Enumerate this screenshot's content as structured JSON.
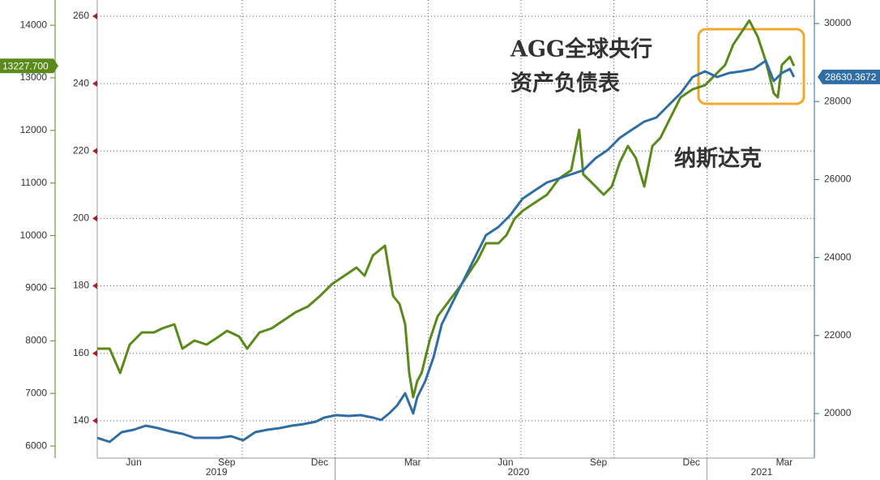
{
  "chart_data": {
    "type": "line",
    "annotations": [
      "AGG全球央行",
      "资产负债表",
      "纳斯达克"
    ],
    "xlim": [
      4.32,
      27.47
    ],
    "xticks": [
      {
        "value": 5.5,
        "label": "Jun"
      },
      {
        "value": 8.5,
        "label": "Sep"
      },
      {
        "value": 11.5,
        "label": "Dec"
      },
      {
        "value": 14.5,
        "label": "Mar"
      },
      {
        "value": 17.5,
        "label": "Jun"
      },
      {
        "value": 20.5,
        "label": "Sep"
      },
      {
        "value": 23.5,
        "label": "Dec"
      },
      {
        "value": 26.5,
        "label": "Mar"
      }
    ],
    "year_ticks": [
      {
        "value": 8.17,
        "label": "2019"
      },
      {
        "value": 17.92,
        "label": "2020"
      },
      {
        "value": 25.77,
        "label": "2021"
      }
    ],
    "xgrid": [
      9,
      12,
      15,
      18,
      21,
      24
    ],
    "year_breaks": [
      12,
      24
    ],
    "ylim": [
      5770,
      14480
    ],
    "yticks": [
      6000,
      7000,
      8000,
      9000,
      10000,
      11000,
      12000,
      13000,
      14000
    ],
    "y2lim": [
      18857,
      30603
    ],
    "y2ticks": [
      20000,
      22000,
      24000,
      26000,
      28000,
      30000
    ],
    "y3lim": [
      128.9,
      264.8
    ],
    "y3ticks": [
      140,
      160,
      180,
      200,
      220,
      240,
      260
    ],
    "grid": true,
    "series": [
      {
        "name": "纳斯达克",
        "color": "#5a8a1a",
        "axis": "y",
        "x": [
          4.32,
          4.72,
          5.06,
          5.37,
          5.76,
          6.15,
          6.42,
          6.81,
          7.07,
          7.46,
          7.85,
          8.25,
          8.51,
          8.9,
          9.16,
          9.56,
          9.95,
          10.34,
          10.73,
          11.12,
          11.51,
          11.91,
          12.3,
          12.69,
          12.95,
          13.22,
          13.61,
          13.87,
          14.08,
          14.26,
          14.39,
          14.52,
          14.65,
          14.79,
          15.05,
          15.31,
          15.7,
          16.09,
          16.35,
          16.61,
          16.87,
          17.27,
          17.53,
          17.79,
          18.05,
          18.44,
          18.84,
          19.23,
          19.62,
          19.88,
          20.01,
          20.28,
          20.67,
          20.93,
          21.19,
          21.45,
          21.71,
          21.98,
          22.24,
          22.5,
          22.76,
          23.15,
          23.54,
          23.94,
          24.2,
          24.59,
          24.85,
          25.11,
          25.37,
          25.64,
          25.9,
          26.16,
          26.29,
          26.42,
          26.68,
          26.81
        ],
        "values": [
          7851,
          7851,
          7389,
          7928,
          8160,
          8160,
          8237,
          8314,
          7851,
          8006,
          7928,
          8083,
          8190,
          8083,
          7851,
          8160,
          8237,
          8391,
          8545,
          8653,
          8853,
          9084,
          9238,
          9392,
          9238,
          9623,
          9808,
          8853,
          8699,
          8314,
          7389,
          6927,
          7235,
          7389,
          8006,
          8468,
          8776,
          9084,
          9315,
          9546,
          9855,
          9855,
          10009,
          10317,
          10471,
          10625,
          10779,
          11087,
          11242,
          12012,
          11165,
          11010,
          10779,
          10933,
          11396,
          11704,
          11473,
          10933,
          11704,
          11858,
          12166,
          12629,
          12783,
          12860,
          13014,
          13245,
          13630,
          13861,
          14092,
          13784,
          13322,
          12706,
          12629,
          13245,
          13399,
          13227.7
        ],
        "value_labels": [
          null,
          null,
          null,
          null,
          null,
          null,
          null,
          null,
          null,
          null,
          null,
          null,
          null,
          null,
          null,
          null,
          null,
          null,
          null,
          null,
          null,
          null,
          null,
          null,
          null,
          null,
          null,
          null,
          null,
          null,
          null,
          null,
          null,
          null,
          null,
          null,
          null,
          null,
          null,
          null,
          null,
          null,
          null,
          null,
          null,
          null,
          null,
          null,
          null,
          null,
          null,
          null,
          null,
          null,
          null,
          null,
          null,
          null,
          null,
          null,
          null,
          null,
          null,
          null,
          null,
          null,
          null,
          null,
          null,
          null,
          null,
          null,
          null,
          null,
          null,
          "13227.700"
        ]
      },
      {
        "name": "AGG全球央行资产负债表",
        "color": "#2f6ea5",
        "axis": "y2",
        "x": [
          4.32,
          4.72,
          5.11,
          5.5,
          5.89,
          6.28,
          6.68,
          7.07,
          7.46,
          7.85,
          8.25,
          8.64,
          9.03,
          9.42,
          9.81,
          10.21,
          10.6,
          10.99,
          11.38,
          11.65,
          12.04,
          12.43,
          12.82,
          13.22,
          13.48,
          13.74,
          14.0,
          14.26,
          14.52,
          14.65,
          14.91,
          15.18,
          15.44,
          15.83,
          16.22,
          16.61,
          16.87,
          17.27,
          17.66,
          18.05,
          18.44,
          18.84,
          19.23,
          19.62,
          20.01,
          20.41,
          20.8,
          21.19,
          21.58,
          21.98,
          22.37,
          22.76,
          23.15,
          23.54,
          23.94,
          24.33,
          24.72,
          25.11,
          25.51,
          25.9,
          26.16,
          26.42,
          26.68,
          26.81
        ],
        "values": [
          19376,
          19272,
          19522,
          19584,
          19688,
          19626,
          19542,
          19480,
          19376,
          19376,
          19376,
          19418,
          19314,
          19522,
          19584,
          19626,
          19688,
          19730,
          19792,
          19896,
          19958,
          19938,
          19958,
          19896,
          19834,
          20000,
          20208,
          20520,
          20000,
          20416,
          20832,
          21455,
          22287,
          22911,
          23534,
          24158,
          24574,
          24782,
          25094,
          25509,
          25717,
          25925,
          26029,
          26133,
          26237,
          26549,
          26757,
          27069,
          27277,
          27485,
          27588,
          27900,
          28212,
          28628,
          28773,
          28628,
          28732,
          28773,
          28836,
          29044,
          28524,
          28732,
          28836,
          28630.3672
        ]
      }
    ]
  }
}
